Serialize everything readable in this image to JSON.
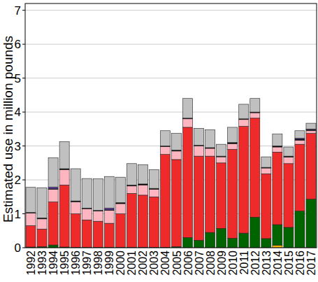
{
  "chart_data": {
    "type": "bar",
    "stacked": true,
    "grid": true,
    "y_label": "Estimated use in million pounds",
    "categories": [
      "1992",
      "1993",
      "1994",
      "1995",
      "1996",
      "1997",
      "1998",
      "1999",
      "2000",
      "2001",
      "2002",
      "2003",
      "2004",
      "2005",
      "2006",
      "2007",
      "2008",
      "2009",
      "2010",
      "2011",
      "2012",
      "2013",
      "2014",
      "2015",
      "2016",
      "2017"
    ],
    "ylim": [
      0,
      7.2
    ],
    "yticks": [
      0,
      1,
      2,
      3,
      4,
      5,
      6,
      7
    ],
    "series": [
      {
        "color": "#f5b700",
        "values": [
          0,
          0,
          0,
          0,
          0,
          0,
          0,
          0,
          0,
          0,
          0,
          0,
          0,
          0,
          0,
          0,
          0,
          0,
          0,
          0,
          0,
          0,
          0.07,
          0,
          0,
          0
        ]
      },
      {
        "color": "#006400",
        "values": [
          0.02,
          0.03,
          0.08,
          0.02,
          0.01,
          0.01,
          0.01,
          0.01,
          0.01,
          0.01,
          0.01,
          0.01,
          0.01,
          0.03,
          0.3,
          0.22,
          0.45,
          0.57,
          0.28,
          0.43,
          0.9,
          0.27,
          0.61,
          0.6,
          1.08,
          1.43
        ]
      },
      {
        "color": "#ee2a2a",
        "values": [
          0.63,
          0.52,
          1.27,
          1.83,
          0.99,
          0.81,
          0.77,
          0.71,
          0.99,
          1.59,
          1.54,
          1.49,
          2.74,
          2.57,
          3.25,
          2.48,
          2.25,
          1.93,
          2.62,
          3.15,
          2.92,
          1.91,
          2.14,
          1.88,
          1.97,
          1.94
        ]
      },
      {
        "color": "#ffb6c1",
        "values": [
          0.37,
          0.3,
          0.37,
          0.45,
          0.35,
          0.33,
          0.3,
          0.38,
          0.3,
          0.22,
          0.3,
          0.22,
          0.23,
          0.25,
          0.25,
          0.3,
          0.23,
          0.18,
          0.17,
          0.2,
          0.16,
          0.17,
          0.15,
          0.19,
          0.12,
          0.08
        ]
      },
      {
        "color": "#000000",
        "values": [
          0.02,
          0.03,
          0.02,
          0.03,
          0.03,
          0.02,
          0.02,
          0.02,
          0.03,
          0.03,
          0.03,
          0.03,
          0.02,
          0.03,
          0.02,
          0.02,
          0.02,
          0.02,
          0.03,
          0.02,
          0.02,
          0.02,
          0.03,
          0.03,
          0.03,
          0.03
        ]
      },
      {
        "color": "#6a3db8",
        "values": [
          0,
          0,
          0.05,
          0,
          0,
          0,
          0,
          0.05,
          0,
          0,
          0,
          0,
          0,
          0,
          0,
          0,
          0,
          0,
          0,
          0,
          0,
          0,
          0,
          0,
          0.03,
          0.02
        ]
      },
      {
        "color": "#c0c0c0",
        "values": [
          0.74,
          0.89,
          0.86,
          0.8,
          0.95,
          0.87,
          0.93,
          0.93,
          0.75,
          0.63,
          0.57,
          0.55,
          0.45,
          0.49,
          0.58,
          0.5,
          0.53,
          0.35,
          0.45,
          0.43,
          0.4,
          0.31,
          0.35,
          0.27,
          0.22,
          0.17
        ]
      }
    ]
  }
}
